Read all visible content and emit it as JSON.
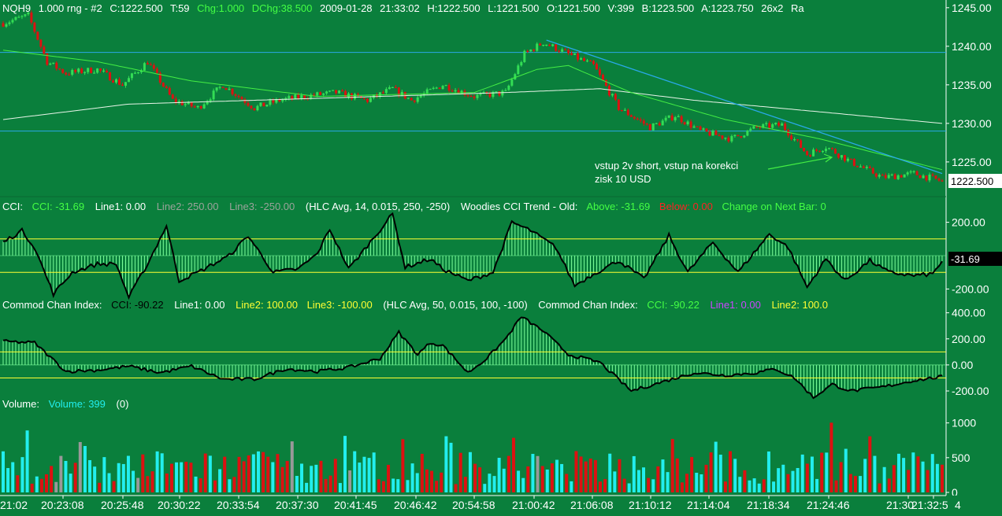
{
  "colors": {
    "background": "#0a7f3c",
    "up_candle": "#33dd55",
    "down_candle": "#dd1111",
    "ma_fast": "#44ee44",
    "ma_slow": "#e8f4e8",
    "trendline": "#2aa8e8",
    "horizontal_level": "#2aa8e8",
    "cci_histogram": "#7cff9a",
    "cci_line": "#000000",
    "threshold_line": "#ffff33",
    "volume_up": "#22eeee",
    "volume_down": "#dd1111",
    "volume_flat": "#999999",
    "text_white": "#ffffff",
    "text_green": "#44ff44",
    "text_yellow": "#ffff33",
    "text_red": "#ff2222",
    "text_grey": "#9aa39a",
    "text_cyan": "#22eeee",
    "text_purple": "#cc44ff"
  },
  "header": {
    "symbol": "NQH9",
    "bar_type": "1.000 rng - #2",
    "close": "C:1222.500",
    "ticks": "T:59",
    "change": "Chg:1.000",
    "dchange": "DChg:38.500",
    "date": "2009-01-28",
    "time": "21:33:02",
    "high": "H:1222.500",
    "low": "L:1221.500",
    "open": "O:1221.500",
    "volume": "V:399",
    "bid": "B:1223.500",
    "ask": "A:1223.750",
    "size": "26x2",
    "tail": "Ra"
  },
  "annotation": {
    "line1": "vstup 2v short, vstup na korekci",
    "line2": "zisk 10 USD"
  },
  "cci_fast_header": {
    "name": "CCI:",
    "value": "CCI: -31.69",
    "line1": "Line1: 0.00",
    "line2": "Line2: 250.00",
    "line3": "Line3: -250.00",
    "params": "(HLC Avg, 14, 0.015, 250, -250)",
    "trend_name": "Woodies CCI Trend - Old:",
    "above": "Above: -31.69",
    "below": "Below: 0.00",
    "change_next": "Change on Next Bar: 0"
  },
  "cci_slow_header": {
    "name": "Commod Chan Index:",
    "value": "CCI: -90.22",
    "line1": "Line1: 0.00",
    "line2": "Line2: 100.00",
    "line3": "Line3: -100.00",
    "params": "(HLC Avg, 50, 0.015, 100, -100)",
    "name2": "Commod Chan Index:",
    "value2": "CCI: -90.22",
    "line1b": "Line1: 0.00",
    "line2b": "Line2: 100.0"
  },
  "volume_header": {
    "name": "Volume:",
    "value": "Volume: 399",
    "extra": "(0)"
  },
  "price_axis": {
    "ticks": [
      "1245.00",
      "1240.00",
      "1235.00",
      "1230.00",
      "1225.00"
    ],
    "last_label": "1222.500"
  },
  "cci_fast_axis": {
    "ticks": [
      "200.00",
      "-200.00"
    ],
    "last_label": "-31.69"
  },
  "cci_slow_axis": {
    "ticks": [
      "400.00",
      "200.00",
      "0.00",
      "-200.00"
    ]
  },
  "volume_axis": {
    "ticks": [
      "1000",
      "500",
      "0"
    ]
  },
  "time_axis": {
    "labels": [
      "21:02",
      "20:23:08",
      "20:25:48",
      "20:30:22",
      "20:33:54",
      "20:37:30",
      "20:41:45",
      "20:46:42",
      "20:54:58",
      "21:00:42",
      "21:06:08",
      "21:10:12",
      "21:14:04",
      "21:18:34",
      "21:24:46",
      "21:30",
      "21:32:5",
      "4"
    ]
  },
  "chart_data": [
    {
      "type": "candlestick",
      "panel": "price",
      "ylim": [
        1220.5,
        1246.0
      ],
      "horizontal_levels": [
        1239.2,
        1229.0
      ],
      "keypoints_close": [
        [
          0,
          1243
        ],
        [
          8,
          1244
        ],
        [
          14,
          1238
        ],
        [
          20,
          1236.5
        ],
        [
          30,
          1237
        ],
        [
          38,
          1235
        ],
        [
          46,
          1238
        ],
        [
          54,
          1233
        ],
        [
          62,
          1232
        ],
        [
          70,
          1235
        ],
        [
          80,
          1232
        ],
        [
          88,
          1233
        ],
        [
          96,
          1233.5
        ],
        [
          106,
          1234
        ],
        [
          116,
          1233
        ],
        [
          124,
          1234.5
        ],
        [
          130,
          1233
        ],
        [
          140,
          1235
        ],
        [
          150,
          1233.5
        ],
        [
          160,
          1234
        ],
        [
          166,
          1239
        ],
        [
          172,
          1240.5
        ],
        [
          180,
          1239
        ],
        [
          188,
          1237.5
        ],
        [
          196,
          1232
        ],
        [
          206,
          1229.5
        ],
        [
          214,
          1231
        ],
        [
          222,
          1229
        ],
        [
          232,
          1228
        ],
        [
          240,
          1229.5
        ],
        [
          248,
          1229.8
        ],
        [
          256,
          1226
        ],
        [
          262,
          1227
        ],
        [
          270,
          1225
        ],
        [
          280,
          1223
        ],
        [
          290,
          1223.5
        ],
        [
          299,
          1222.5
        ]
      ],
      "bars": 300
    },
    {
      "type": "line",
      "panel": "price",
      "name": "ma_fast",
      "keypoints": [
        [
          0,
          1239.5
        ],
        [
          30,
          1238
        ],
        [
          60,
          1235.5
        ],
        [
          100,
          1233.5
        ],
        [
          150,
          1234
        ],
        [
          170,
          1237
        ],
        [
          180,
          1237.5
        ],
        [
          200,
          1234
        ],
        [
          230,
          1230.5
        ],
        [
          260,
          1228
        ],
        [
          299,
          1224
        ]
      ]
    },
    {
      "type": "line",
      "panel": "price",
      "name": "ma_slow",
      "keypoints": [
        [
          0,
          1230.5
        ],
        [
          40,
          1232.5
        ],
        [
          80,
          1233
        ],
        [
          120,
          1233.5
        ],
        [
          160,
          1234
        ],
        [
          190,
          1234.5
        ],
        [
          220,
          1233
        ],
        [
          260,
          1231.5
        ],
        [
          299,
          1230
        ]
      ]
    },
    {
      "type": "line",
      "panel": "price",
      "name": "trendline",
      "points": [
        [
          173,
          1240.8
        ],
        [
          299,
          1223.5
        ]
      ]
    },
    {
      "type": "histogram_line",
      "panel": "cci_fast",
      "ylim": [
        -250,
        250
      ],
      "thresholds": [
        100,
        -100
      ],
      "keypoints": [
        [
          0,
          80
        ],
        [
          6,
          150
        ],
        [
          10,
          50
        ],
        [
          16,
          -230
        ],
        [
          22,
          -100
        ],
        [
          30,
          -50
        ],
        [
          36,
          -50
        ],
        [
          40,
          -250
        ],
        [
          46,
          -50
        ],
        [
          52,
          180
        ],
        [
          56,
          -150
        ],
        [
          62,
          -100
        ],
        [
          72,
          0
        ],
        [
          78,
          120
        ],
        [
          86,
          -100
        ],
        [
          94,
          -80
        ],
        [
          100,
          10
        ],
        [
          104,
          160
        ],
        [
          110,
          -80
        ],
        [
          116,
          60
        ],
        [
          124,
          250
        ],
        [
          128,
          -70
        ],
        [
          136,
          -20
        ],
        [
          140,
          -80
        ],
        [
          148,
          -150
        ],
        [
          156,
          -100
        ],
        [
          162,
          200
        ],
        [
          168,
          150
        ],
        [
          176,
          50
        ],
        [
          182,
          -180
        ],
        [
          188,
          -110
        ],
        [
          196,
          -30
        ],
        [
          204,
          -140
        ],
        [
          212,
          120
        ],
        [
          218,
          -100
        ],
        [
          226,
          80
        ],
        [
          234,
          -100
        ],
        [
          244,
          130
        ],
        [
          250,
          50
        ],
        [
          256,
          -190
        ],
        [
          262,
          -20
        ],
        [
          268,
          -150
        ],
        [
          276,
          -30
        ],
        [
          282,
          -100
        ],
        [
          290,
          -120
        ],
        [
          296,
          -110
        ],
        [
          299,
          -32
        ]
      ]
    },
    {
      "type": "histogram_line",
      "panel": "cci_slow",
      "ylim": [
        -230,
        410
      ],
      "thresholds": [
        100,
        -100
      ],
      "keypoints": [
        [
          0,
          180
        ],
        [
          10,
          170
        ],
        [
          20,
          -50
        ],
        [
          30,
          -40
        ],
        [
          40,
          -10
        ],
        [
          50,
          -60
        ],
        [
          60,
          -10
        ],
        [
          70,
          -110
        ],
        [
          80,
          -110
        ],
        [
          90,
          -30
        ],
        [
          100,
          -50
        ],
        [
          110,
          -20
        ],
        [
          120,
          50
        ],
        [
          126,
          250
        ],
        [
          132,
          80
        ],
        [
          136,
          170
        ],
        [
          140,
          150
        ],
        [
          148,
          -60
        ],
        [
          154,
          50
        ],
        [
          160,
          200
        ],
        [
          165,
          370
        ],
        [
          172,
          260
        ],
        [
          180,
          80
        ],
        [
          190,
          20
        ],
        [
          200,
          -200
        ],
        [
          210,
          -130
        ],
        [
          220,
          -60
        ],
        [
          230,
          -80
        ],
        [
          240,
          -60
        ],
        [
          246,
          -30
        ],
        [
          252,
          -100
        ],
        [
          258,
          -250
        ],
        [
          264,
          -150
        ],
        [
          270,
          -200
        ],
        [
          280,
          -170
        ],
        [
          290,
          -120
        ],
        [
          299,
          -90
        ]
      ]
    },
    {
      "type": "bar",
      "panel": "volume",
      "ylim": [
        0,
        1200
      ],
      "last_value": 399,
      "bars": 196
    }
  ]
}
